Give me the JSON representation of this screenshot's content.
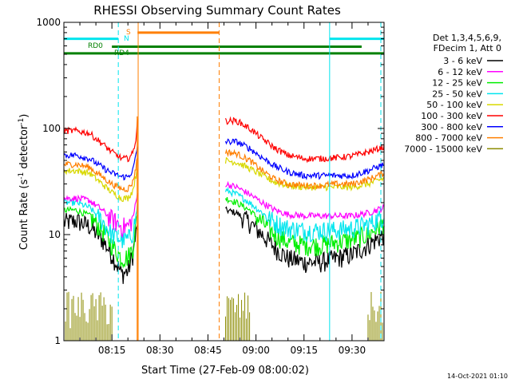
{
  "chart_data": {
    "type": "line",
    "title": "RHESSI Observing Summary Count Rates",
    "xlabel": "Start Time (27-Feb-09 08:00:02)",
    "ylabel_main": "Count Rate (s",
    "ylabel_sup1": "-1",
    "ylabel_mid": " detector",
    "ylabel_sup2": "-1",
    "ylabel_end": ")",
    "xlim_minutes": [
      0,
      100
    ],
    "ylim": [
      1,
      1000
    ],
    "yscale": "log",
    "x_ticks": [
      {
        "t": 15,
        "label": "08:15"
      },
      {
        "t": 30,
        "label": "08:30"
      },
      {
        "t": 45,
        "label": "08:45"
      },
      {
        "t": 60,
        "label": "09:00"
      },
      {
        "t": 75,
        "label": "09:15"
      },
      {
        "t": 90,
        "label": "09:30"
      }
    ],
    "y_ticks": [
      {
        "v": 1,
        "label": "1"
      },
      {
        "v": 10,
        "label": "10"
      },
      {
        "v": 100,
        "label": "100"
      },
      {
        "v": 1000,
        "label": "1000"
      }
    ],
    "legend_header": [
      "Det 1,3,4,5,6,9,",
      "FDecim 1, Att 0"
    ],
    "legend_placement": "right",
    "series": [
      {
        "name": "3 - 6 keV",
        "color": "#000000",
        "seg1": [
          [
            0,
            13
          ],
          [
            4,
            13.5
          ],
          [
            8,
            12
          ],
          [
            12,
            9
          ],
          [
            15,
            6.5
          ],
          [
            18,
            4.3
          ],
          [
            20,
            4.5
          ],
          [
            21.5,
            6.5
          ],
          [
            22.5,
            10
          ],
          [
            23,
            12
          ]
        ],
        "seg2": [
          [
            50.5,
            17
          ],
          [
            54,
            16
          ],
          [
            58,
            13
          ],
          [
            62,
            10
          ],
          [
            66,
            7.5
          ],
          [
            70,
            6
          ],
          [
            75,
            5.5
          ],
          [
            80,
            5.5
          ],
          [
            85,
            6
          ],
          [
            90,
            6.5
          ],
          [
            95,
            8
          ],
          [
            100,
            10
          ]
        ]
      },
      {
        "name": "6 - 12 keV",
        "color": "#ff00ff",
        "seg1": [
          [
            0,
            22
          ],
          [
            4,
            22
          ],
          [
            8,
            21
          ],
          [
            12,
            17
          ],
          [
            15,
            14
          ],
          [
            18,
            12
          ],
          [
            20,
            12
          ],
          [
            21.5,
            14
          ],
          [
            22.5,
            20
          ],
          [
            23,
            24
          ]
        ],
        "seg2": [
          [
            50.5,
            30
          ],
          [
            54,
            28
          ],
          [
            58,
            24
          ],
          [
            62,
            20
          ],
          [
            66,
            17
          ],
          [
            70,
            15.5
          ],
          [
            75,
            15
          ],
          [
            80,
            15
          ],
          [
            85,
            15
          ],
          [
            90,
            15
          ],
          [
            95,
            16
          ],
          [
            100,
            18
          ]
        ]
      },
      {
        "name": "12 - 25 keV",
        "color": "#00ee00",
        "seg1": [
          [
            0,
            17
          ],
          [
            4,
            17
          ],
          [
            8,
            15
          ],
          [
            12,
            11
          ],
          [
            15,
            8
          ],
          [
            18,
            6
          ],
          [
            20,
            6.2
          ],
          [
            21.5,
            7.5
          ],
          [
            22.5,
            12
          ],
          [
            23,
            16
          ]
        ],
        "seg2": [
          [
            50.5,
            22
          ],
          [
            54,
            20
          ],
          [
            58,
            17
          ],
          [
            62,
            13
          ],
          [
            66,
            10
          ],
          [
            70,
            8.5
          ],
          [
            75,
            8
          ],
          [
            80,
            8
          ],
          [
            85,
            8.5
          ],
          [
            90,
            9
          ],
          [
            95,
            10
          ],
          [
            100,
            13
          ]
        ]
      },
      {
        "name": "25 - 50 keV",
        "color": "#00e5ee",
        "seg1": [
          [
            0,
            20
          ],
          [
            4,
            20
          ],
          [
            8,
            18
          ],
          [
            12,
            13.5
          ],
          [
            15,
            10
          ],
          [
            18,
            9
          ],
          [
            20,
            9
          ],
          [
            21.5,
            10.5
          ],
          [
            22.5,
            15
          ],
          [
            23,
            19
          ]
        ],
        "seg2": [
          [
            50.5,
            26
          ],
          [
            54,
            24
          ],
          [
            58,
            20
          ],
          [
            62,
            16
          ],
          [
            66,
            13
          ],
          [
            70,
            11.5
          ],
          [
            75,
            11
          ],
          [
            80,
            11
          ],
          [
            85,
            11
          ],
          [
            90,
            11.5
          ],
          [
            95,
            12.5
          ],
          [
            100,
            15
          ]
        ]
      },
      {
        "name": "50 - 100 keV",
        "color": "#d8d800",
        "seg1": [
          [
            0,
            40
          ],
          [
            4,
            40
          ],
          [
            8,
            38
          ],
          [
            12,
            30
          ],
          [
            15,
            25
          ],
          [
            18,
            22
          ],
          [
            20,
            22
          ],
          [
            21.5,
            26
          ],
          [
            22.5,
            36
          ],
          [
            23,
            44
          ]
        ],
        "seg2": [
          [
            50.5,
            50
          ],
          [
            54,
            48
          ],
          [
            58,
            42
          ],
          [
            62,
            36
          ],
          [
            66,
            31
          ],
          [
            70,
            29
          ],
          [
            75,
            28
          ],
          [
            80,
            28
          ],
          [
            85,
            28
          ],
          [
            90,
            28
          ],
          [
            95,
            30
          ],
          [
            100,
            34
          ]
        ]
      },
      {
        "name": "100 - 300 keV",
        "color": "#ff0000",
        "seg1": [
          [
            0,
            95
          ],
          [
            4,
            95
          ],
          [
            8,
            90
          ],
          [
            12,
            72
          ],
          [
            15,
            60
          ],
          [
            18,
            52
          ],
          [
            20,
            52
          ],
          [
            21.5,
            58
          ],
          [
            22.5,
            80
          ],
          [
            23,
            120
          ]
        ],
        "seg2": [
          [
            50.5,
            118
          ],
          [
            54,
            118
          ],
          [
            58,
            100
          ],
          [
            62,
            80
          ],
          [
            66,
            65
          ],
          [
            70,
            56
          ],
          [
            75,
            52
          ],
          [
            80,
            52
          ],
          [
            85,
            53
          ],
          [
            90,
            55
          ],
          [
            95,
            60
          ],
          [
            100,
            67
          ]
        ]
      },
      {
        "name": "300 - 800 keV",
        "color": "#0000ff",
        "seg1": [
          [
            0,
            56
          ],
          [
            4,
            56
          ],
          [
            8,
            52
          ],
          [
            12,
            43
          ],
          [
            15,
            38
          ],
          [
            18,
            35
          ],
          [
            20,
            35
          ],
          [
            21.5,
            40
          ],
          [
            22.5,
            55
          ],
          [
            23,
            68
          ]
        ],
        "seg2": [
          [
            50.5,
            75
          ],
          [
            54,
            75
          ],
          [
            58,
            65
          ],
          [
            62,
            53
          ],
          [
            66,
            44
          ],
          [
            70,
            39
          ],
          [
            75,
            36
          ],
          [
            80,
            36
          ],
          [
            85,
            36
          ],
          [
            90,
            36
          ],
          [
            95,
            40
          ],
          [
            100,
            46
          ]
        ]
      },
      {
        "name": "800 - 7000 keV",
        "color": "#ff7f00",
        "seg1": [
          [
            0,
            46
          ],
          [
            4,
            46
          ],
          [
            8,
            43
          ],
          [
            12,
            35
          ],
          [
            15,
            30
          ],
          [
            18,
            27
          ],
          [
            20,
            27
          ],
          [
            21.5,
            31
          ],
          [
            22.5,
            43
          ],
          [
            23,
            54
          ]
        ],
        "seg2": [
          [
            50.5,
            60
          ],
          [
            54,
            58
          ],
          [
            58,
            50
          ],
          [
            62,
            40
          ],
          [
            66,
            33
          ],
          [
            70,
            30
          ],
          [
            75,
            29
          ],
          [
            80,
            29
          ],
          [
            85,
            30
          ],
          [
            90,
            30
          ],
          [
            95,
            33
          ],
          [
            100,
            38
          ]
        ]
      },
      {
        "name": "7000 - 15000 keV",
        "color": "#8b8b00",
        "seg1": [],
        "seg2": []
      }
    ],
    "annotations": [
      {
        "text": "S",
        "color": "#ff7f00"
      },
      {
        "text": "N",
        "color": "#00e5ee"
      },
      {
        "text": "RD0",
        "color": "#008000"
      },
      {
        "text": "RD4",
        "color": "#008000"
      }
    ],
    "flag_bars": [
      {
        "name": "SAA",
        "color": "#ff7f00",
        "t0": 23,
        "t1": 48.5,
        "y": 800
      },
      {
        "name": "night-left",
        "color": "#00e5ee",
        "t0": 0,
        "t1": 17,
        "y": 700
      },
      {
        "name": "night-right",
        "color": "#00e5ee",
        "t0": 83,
        "t1": 100,
        "y": 700
      },
      {
        "name": "RD0",
        "color": "#008000",
        "t0": 15,
        "t1": 93,
        "y": 590
      },
      {
        "name": "RD4",
        "color": "#008000",
        "t0": 0,
        "t1": 100,
        "y": 510
      }
    ],
    "vlines": [
      {
        "t": 17,
        "color": "#00e5ee",
        "dash": true
      },
      {
        "t": 23.2,
        "color": "#ff7f00",
        "dash": false
      },
      {
        "t": 48.5,
        "color": "#ff7f00",
        "dash": true
      },
      {
        "t": 83,
        "color": "#00e5ee",
        "dash": false
      },
      {
        "t": 99,
        "color": "#00e5ee",
        "dash": true
      }
    ],
    "footer_date": "14-Oct-2021 01:10"
  }
}
